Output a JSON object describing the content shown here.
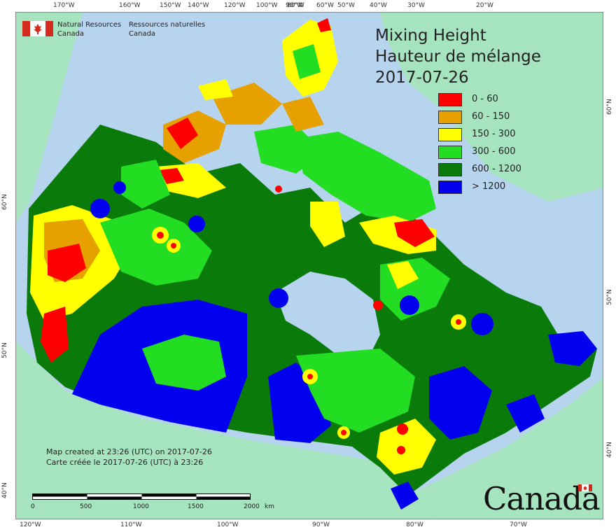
{
  "header": {
    "agency_en_line1": "Natural Resources",
    "agency_en_line2": "Canada",
    "agency_fr_line1": "Ressources naturelles",
    "agency_fr_line2": "Canada"
  },
  "title": {
    "line1": "Mixing Height",
    "line2": "Hauteur de mélange",
    "line3": "2017-07-26"
  },
  "legend": [
    {
      "label": "0 - 60",
      "color": "#ff0000"
    },
    {
      "label": "60 - 150",
      "color": "#e6a000"
    },
    {
      "label": "150 - 300",
      "color": "#ffff00"
    },
    {
      "label": "300 - 600",
      "color": "#22dd22"
    },
    {
      "label": "600 - 1200",
      "color": "#0a7a0a"
    },
    {
      "label": "> 1200",
      "color": "#0000ee"
    }
  ],
  "credit": {
    "line1": "Map created at 23:26 (UTC) on 2017-07-26",
    "line2": "Carte créée le 2017-07-26 (UTC) à 23:26"
  },
  "scale": {
    "t0": "0",
    "t1": "500",
    "t2": "1000",
    "t3": "1500",
    "t4": "2000",
    "unit": "km"
  },
  "axis": {
    "top": [
      "170°W",
      "160°W",
      "150°W",
      "140°W",
      "120°W",
      "100°W",
      "90°W",
      "80°W",
      "60°W",
      "50°W",
      "40°W",
      "30°W",
      "20°W"
    ],
    "bottom": [
      "120°W",
      "110°W",
      "100°W",
      "90°W",
      "80°W",
      "70°W"
    ],
    "left": [
      "60°N",
      "50°N",
      "40°N"
    ],
    "right": [
      "60°N",
      "50°N",
      "40°N"
    ]
  },
  "wordmark": "Canada",
  "colors": {
    "ocean": "#b7d4ef",
    "land_outside": "#a6e3bf",
    "flag_red": "#d52b1e"
  }
}
